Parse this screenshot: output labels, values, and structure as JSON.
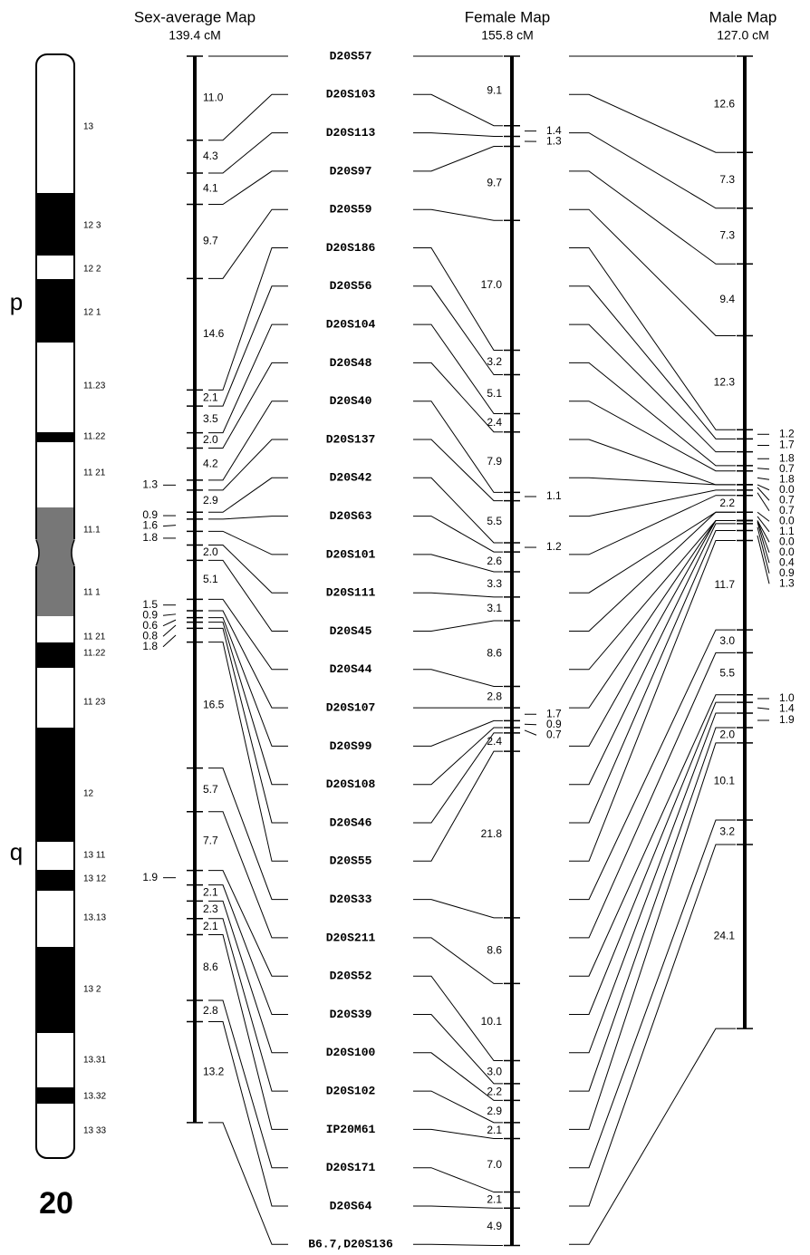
{
  "chromosome": {
    "label": "20",
    "arms": [
      "p",
      "q"
    ],
    "bands": [
      "13",
      "12 3",
      "12 2",
      "12 1",
      "11.23",
      "11.22",
      "11 21",
      "11.1",
      "11 1",
      "11 21",
      "11.22",
      "11 23",
      "12",
      "13 11",
      "13 12",
      "13.13",
      "13 2",
      "13.31",
      "13.32",
      "13 33"
    ]
  },
  "maps": [
    {
      "title": "Sex-average Map",
      "length": "139.4 cM",
      "intervals": [
        "11.0",
        "4.3",
        "4.1",
        "9.7",
        "14.6",
        "2.1",
        "3.5",
        "2.0",
        "4.2",
        "1.3",
        "2.9",
        "0.9",
        "1.6",
        "1.8",
        "2.0",
        "5.1",
        "1.5",
        "0.9",
        "0.6",
        "0.8",
        "1.8",
        "16.5",
        "5.7",
        "7.7",
        "1.9",
        "2.1",
        "2.3",
        "2.1",
        "8.6",
        "2.8",
        "13.2"
      ]
    },
    {
      "title": "Female Map",
      "length": "155.8 cM",
      "intervals": [
        "9.1",
        "1.4",
        "1.3",
        "9.7",
        "17.0",
        "3.2",
        "5.1",
        "2.4",
        "7.9",
        "1.1",
        "5.5",
        "1.2",
        "2.6",
        "3.3",
        "3.1",
        "8.6",
        "2.8",
        "1.7",
        "0.9",
        "0.7",
        "2.4",
        "21.8",
        "8.6",
        "10.1",
        "3.0",
        "2.2",
        "2.9",
        "2.1",
        "7.0",
        "2.1",
        "4.9"
      ]
    },
    {
      "title": "Male Map",
      "length": "127.0 cM",
      "intervals": [
        "12.6",
        "7.3",
        "7.3",
        "9.4",
        "12.3",
        "1.2",
        "1.7",
        "1.8",
        "0.7",
        "1.8",
        "0.0",
        "0.7",
        "0.7",
        "2.2",
        "0.0",
        "1.1",
        "0.0",
        "0.0",
        "0.4",
        "0.9",
        "1.3",
        "11.7",
        "3.0",
        "5.5",
        "1.0",
        "1.4",
        "1.9",
        "2.0",
        "10.1",
        "3.2",
        "24.1"
      ]
    }
  ],
  "markers": [
    "D20S57",
    "D20S103",
    "D20S113",
    "D20S97",
    "D20S59",
    "D20S186",
    "D20S56",
    "D20S104",
    "D20S48",
    "D20S40",
    "D20S137",
    "D20S42",
    "D20S63",
    "D20S101",
    "D20S111",
    "D20S45",
    "D20S44",
    "D20S107",
    "D20S99",
    "D20S108",
    "D20S46",
    "D20S55",
    "D20S33",
    "D20S211",
    "D20S52",
    "D20S39",
    "D20S100",
    "D20S102",
    "IP20M61",
    "D20S171",
    "D20S64",
    "B6.7,D20S136"
  ]
}
